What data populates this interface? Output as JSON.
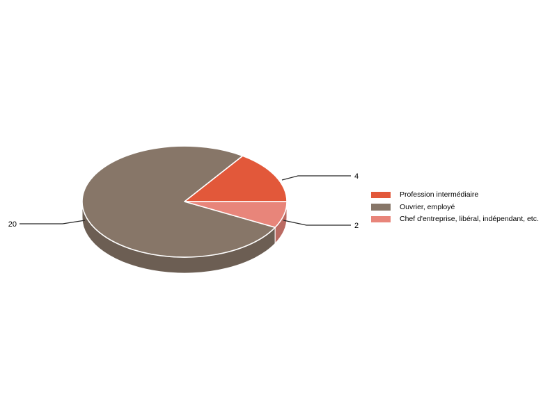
{
  "page": {
    "background": "#ffffff"
  },
  "chart_data": {
    "type": "pie",
    "style": "3d",
    "title": "",
    "slices": [
      {
        "label": "Profession intermédiaire",
        "value": 4,
        "color": "#e2583a"
      },
      {
        "label": "Ouvrier, employé",
        "value": 20,
        "color": "#877668"
      },
      {
        "label": "Chef d'entreprise, libéral, indépendant, etc.",
        "value": 2,
        "color": "#e8857a"
      }
    ],
    "start_angle_deg": 0,
    "direction": "counterclockwise",
    "legend_position": "right",
    "slice_border_color": "#ffffff",
    "leader_line_color": "#262626",
    "value_label_color": "#000000"
  }
}
